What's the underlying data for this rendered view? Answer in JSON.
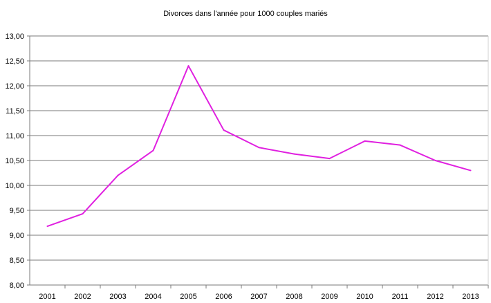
{
  "chart_data": {
    "type": "line",
    "title": "Divorces dans l'année  pour 1000 couples mariés",
    "xlabel": "",
    "ylabel": "",
    "categories": [
      "2001",
      "2002",
      "2003",
      "2004",
      "2005",
      "2006",
      "2007",
      "2008",
      "2009",
      "2010",
      "2011",
      "2012",
      "2013"
    ],
    "series": [
      {
        "values": [
          9.18,
          9.43,
          10.2,
          10.7,
          12.4,
          11.11,
          10.76,
          10.63,
          10.54,
          10.89,
          10.81,
          10.5,
          10.3
        ],
        "color": "#e020e0"
      }
    ],
    "ylim": [
      8,
      13
    ],
    "yticks": [
      "8,00",
      "8,50",
      "9,00",
      "9,50",
      "10,00",
      "10,50",
      "11,00",
      "11,50",
      "12,00",
      "12,50",
      "13,00"
    ],
    "grid": "horizontal",
    "legend": "none"
  }
}
